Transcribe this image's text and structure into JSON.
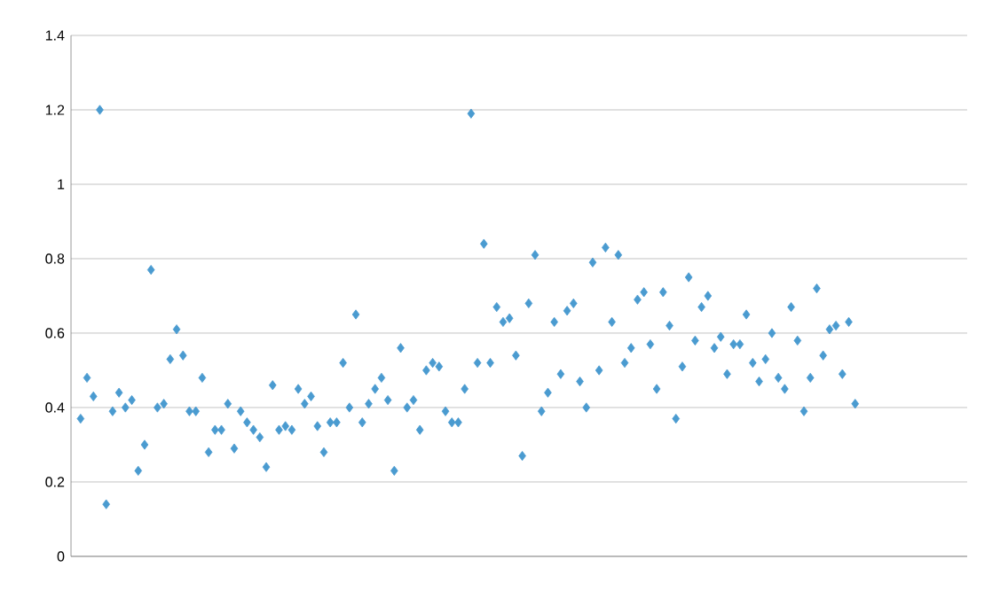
{
  "chart_data": {
    "type": "scatter",
    "marker": "diamond",
    "grid": "y",
    "tick_labels": "y",
    "color": "#4a9bd0",
    "ylim": [
      0,
      1.4
    ],
    "yticks": [
      0,
      0.2,
      0.4,
      0.6,
      0.8,
      1,
      1.2,
      1.4
    ],
    "categories": [
      null,
      null,
      null,
      null,
      null,
      null,
      null,
      null,
      null,
      null,
      null,
      null,
      null,
      null,
      null,
      null,
      null,
      null,
      null,
      null,
      null,
      null,
      null,
      null,
      null,
      null,
      null,
      null,
      null,
      null,
      null,
      null,
      null,
      null,
      null,
      null,
      null,
      null,
      null,
      null,
      null,
      null,
      null,
      null,
      null,
      null,
      null,
      null,
      null,
      null,
      null,
      null,
      null,
      null,
      null,
      null,
      null,
      null,
      null,
      null,
      null,
      null,
      null,
      null,
      null,
      null,
      null,
      null,
      null,
      null,
      null,
      null,
      null,
      null,
      null,
      null,
      null,
      null,
      null,
      null,
      null,
      null,
      null,
      null,
      null,
      null,
      null,
      null,
      null,
      null,
      null,
      null,
      null,
      null,
      null,
      null,
      null,
      null,
      null,
      null,
      null,
      null,
      null,
      null,
      null,
      null,
      null,
      null,
      null,
      null,
      null,
      null,
      null,
      null,
      null,
      null,
      null,
      null,
      null,
      null,
      null,
      null,
      null,
      null,
      null,
      null,
      null,
      null,
      null,
      null,
      null,
      null,
      null,
      null,
      null,
      null,
      null,
      null,
      null,
      null
    ],
    "values": [
      null,
      0.37,
      0.48,
      0.43,
      1.2,
      0.14,
      0.39,
      0.44,
      0.4,
      0.42,
      0.23,
      0.3,
      0.77,
      0.4,
      0.41,
      0.53,
      0.61,
      0.54,
      0.39,
      0.39,
      0.48,
      0.28,
      0.34,
      0.34,
      0.41,
      0.29,
      0.39,
      0.36,
      0.34,
      0.32,
      0.24,
      0.46,
      0.34,
      0.35,
      0.34,
      0.45,
      0.41,
      0.43,
      0.35,
      0.28,
      0.36,
      0.36,
      0.52,
      0.4,
      0.65,
      0.36,
      0.41,
      0.45,
      0.48,
      0.42,
      0.23,
      0.56,
      0.4,
      0.42,
      0.34,
      0.5,
      0.52,
      0.51,
      0.39,
      0.36,
      0.36,
      0.45,
      1.19,
      0.52,
      0.84,
      0.52,
      0.67,
      0.63,
      0.64,
      0.54,
      0.27,
      0.68,
      0.81,
      0.39,
      0.44,
      0.63,
      0.49,
      0.66,
      0.68,
      0.47,
      0.4,
      0.79,
      0.5,
      0.83,
      0.63,
      0.81,
      0.52,
      0.56,
      0.69,
      0.71,
      0.57,
      0.45,
      0.71,
      0.62,
      0.37,
      0.51,
      0.75,
      0.58,
      0.67,
      0.7,
      0.56,
      0.59,
      0.49,
      0.57,
      0.57,
      0.65,
      0.52,
      0.47,
      0.53,
      0.6,
      0.48,
      0.45,
      0.67,
      0.58,
      0.39,
      0.48,
      0.72,
      0.54,
      0.61,
      0.62,
      0.49,
      0.63,
      0.41,
      null,
      null,
      null,
      null,
      null,
      null,
      null,
      null,
      null,
      null,
      null,
      null,
      null,
      null,
      null,
      null,
      null
    ]
  }
}
